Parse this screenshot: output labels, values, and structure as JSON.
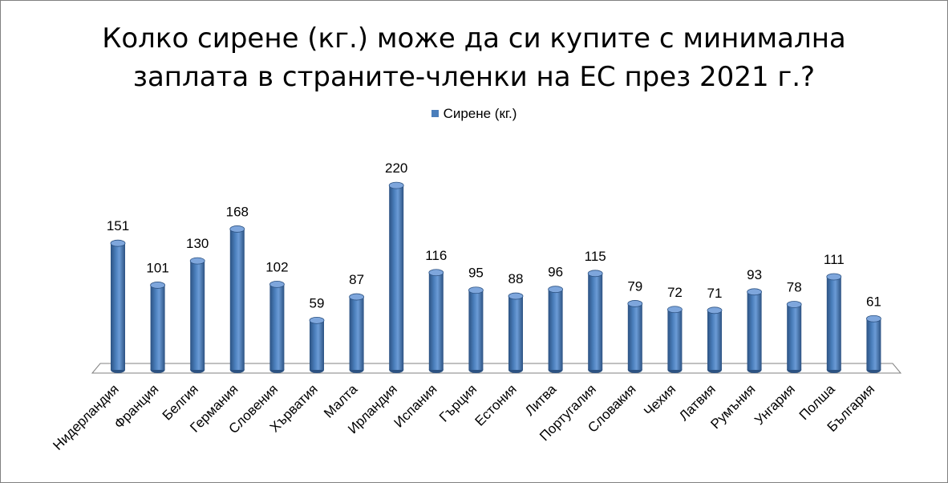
{
  "title_line1": "Колко сирене (кг.) може да си купите с минимална",
  "title_line2": "заплата в страните-членки на ЕС през 2021 г.?",
  "legend_label": "Сирене (кг.)",
  "colors": {
    "bar": "#4a7ebb",
    "bar_dark": "#2c5282",
    "floor": "#ffffff",
    "floor_stroke": "#808080"
  },
  "chart_data": {
    "type": "bar",
    "title": "Колко сирене (кг.) може да си купите с минимална заплата в страните-членки на ЕС през 2021 г.?",
    "categories": [
      "Нидерландия",
      "Франция",
      "Белгия",
      "Германия",
      "Словения",
      "Хърватия",
      "Малта",
      "Ирландия",
      "Испания",
      "Гърция",
      "Естония",
      "Литва",
      "Португалия",
      "Словакия",
      "Чехия",
      "Латвия",
      "Румъния",
      "Унгария",
      "Полша",
      "България"
    ],
    "series": [
      {
        "name": "Сирене (кг.)",
        "values": [
          151,
          101,
          130,
          168,
          102,
          59,
          87,
          220,
          116,
          95,
          88,
          96,
          115,
          79,
          72,
          71,
          93,
          78,
          111,
          61
        ]
      }
    ],
    "data_labels": true,
    "legend_position": "top",
    "grid": false,
    "three_d": true
  }
}
